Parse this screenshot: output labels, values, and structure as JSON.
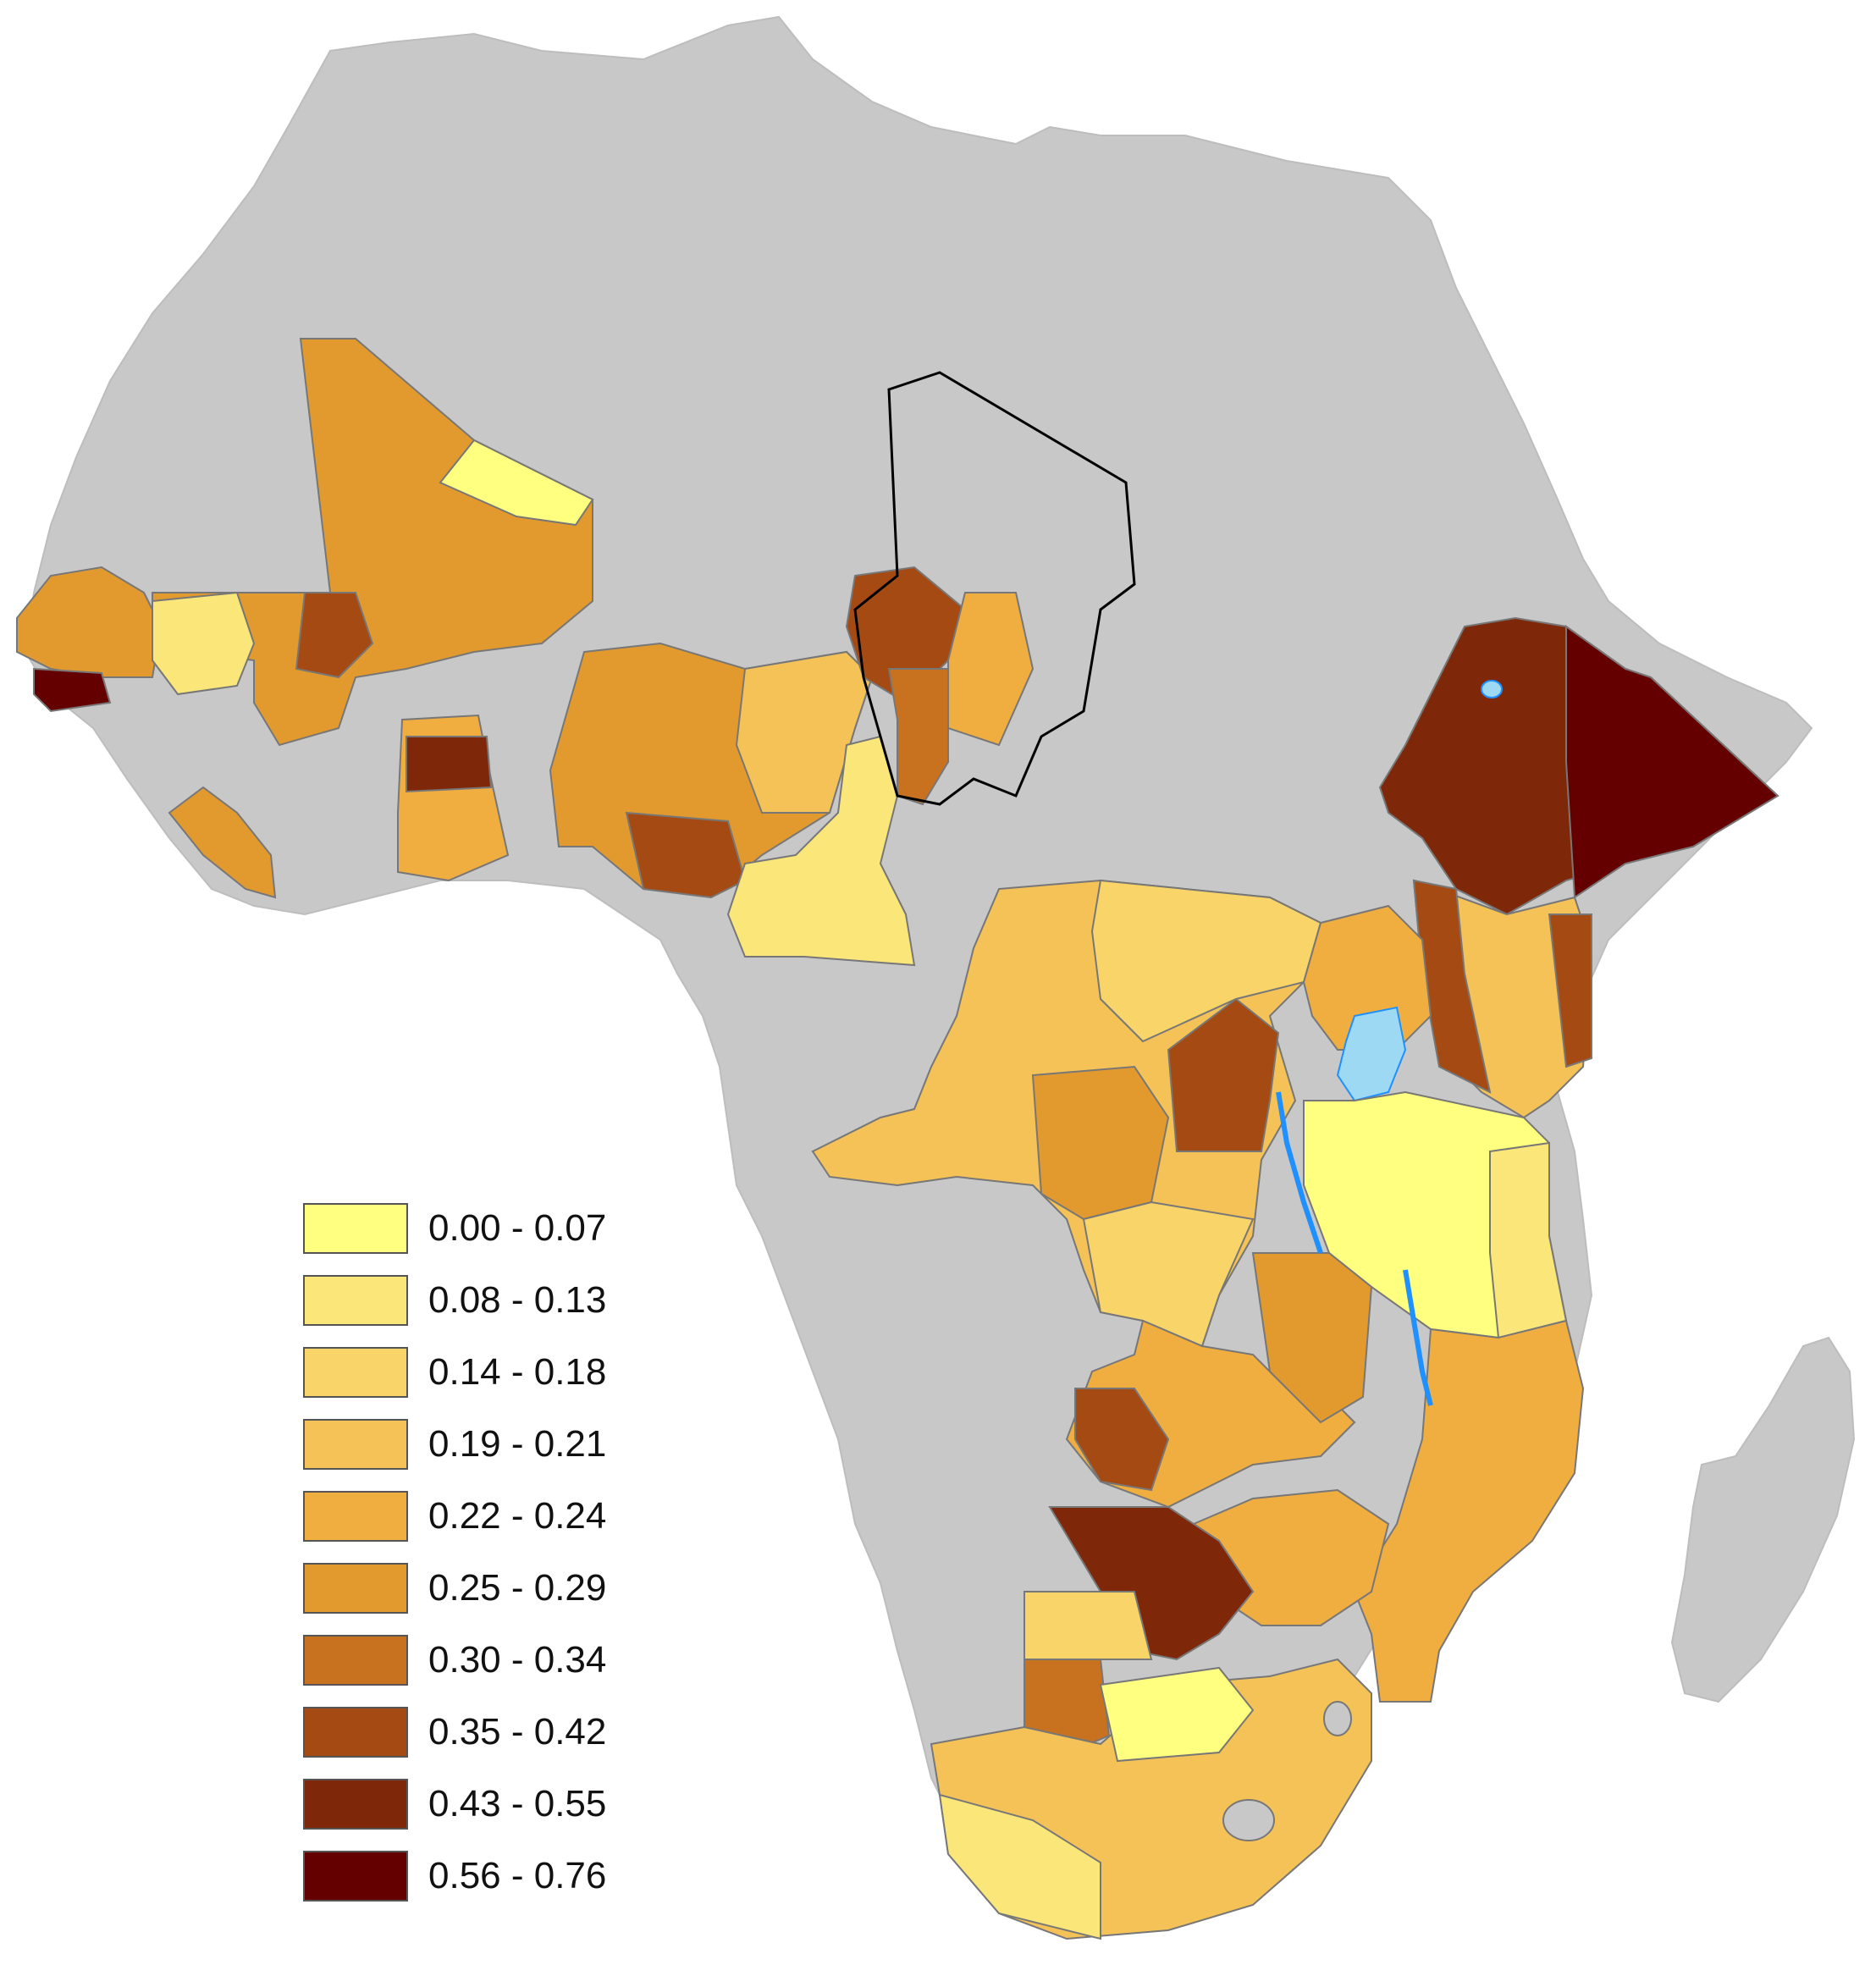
{
  "legend": {
    "classes": [
      {
        "label": "0.00 - 0.07",
        "color": "#ffff80"
      },
      {
        "label": "0.08 - 0.13",
        "color": "#fbe67a"
      },
      {
        "label": "0.14 - 0.18",
        "color": "#f9d569"
      },
      {
        "label": "0.19 - 0.21",
        "color": "#f4c256"
      },
      {
        "label": "0.22 - 0.24",
        "color": "#f0ad40"
      },
      {
        "label": "0.25 - 0.29",
        "color": "#e29a2e"
      },
      {
        "label": "0.30 - 0.34",
        "color": "#c8711e"
      },
      {
        "label": "0.35 - 0.42",
        "color": "#a64a13"
      },
      {
        "label": "0.43 - 0.55",
        "color": "#7f2709"
      },
      {
        "label": "0.56 - 0.76",
        "color": "#650000"
      }
    ]
  },
  "map": {
    "background_land_color": "#c8c8c8",
    "water_color": "#9dd9f3",
    "border_color": "#777777"
  }
}
